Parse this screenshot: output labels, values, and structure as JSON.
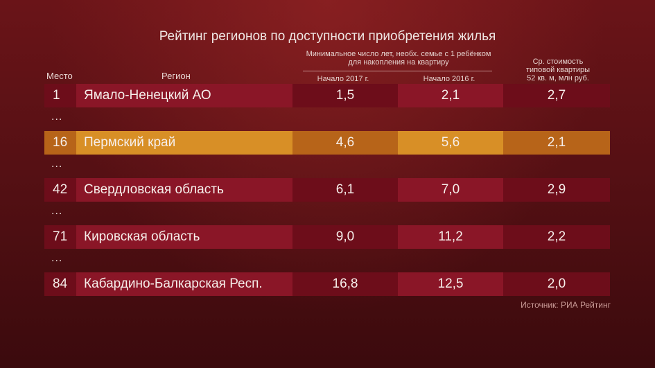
{
  "title": "Рейтинг регионов по доступности приобретения жилья",
  "columns": {
    "place": "Место",
    "region": "Регион",
    "years_group": "Минимальное число лет, необх. семье с 1 ребёнком\nдля накопления на квартиру",
    "y2017": "Начало 2017 г.",
    "y2016": "Начало 2016 г.",
    "avg_cost": "Ср. стоимость\nтиповой квартиры\n52 кв. м, млн руб."
  },
  "rows": [
    {
      "place": "1",
      "region": "Ямало-Ненецкий АО",
      "y2017": "1,5",
      "y2016": "2,1",
      "cost": "2,7",
      "highlight": false
    },
    {
      "place": "16",
      "region": "Пермский край",
      "y2017": "4,6",
      "y2016": "5,6",
      "cost": "2,1",
      "highlight": true
    },
    {
      "place": "42",
      "region": "Свердловская область",
      "y2017": "6,1",
      "y2016": "7,0",
      "cost": "2,9",
      "highlight": false
    },
    {
      "place": "71",
      "region": "Кировская область",
      "y2017": "9,0",
      "y2016": "11,2",
      "cost": "2,2",
      "highlight": false
    },
    {
      "place": "84",
      "region": "Кабардино-Балкарская Респ.",
      "y2017": "16,8",
      "y2016": "12,5",
      "cost": "2,0",
      "highlight": false
    }
  ],
  "ellipsis": "...",
  "source": "Источник: РИА Рейтинг",
  "colors": {
    "background": "#5a1115",
    "row_dark": "#6d0d1a",
    "row_light": "#8a1627",
    "highlight_dark": "#b76419",
    "highlight_light": "#d88f26"
  }
}
